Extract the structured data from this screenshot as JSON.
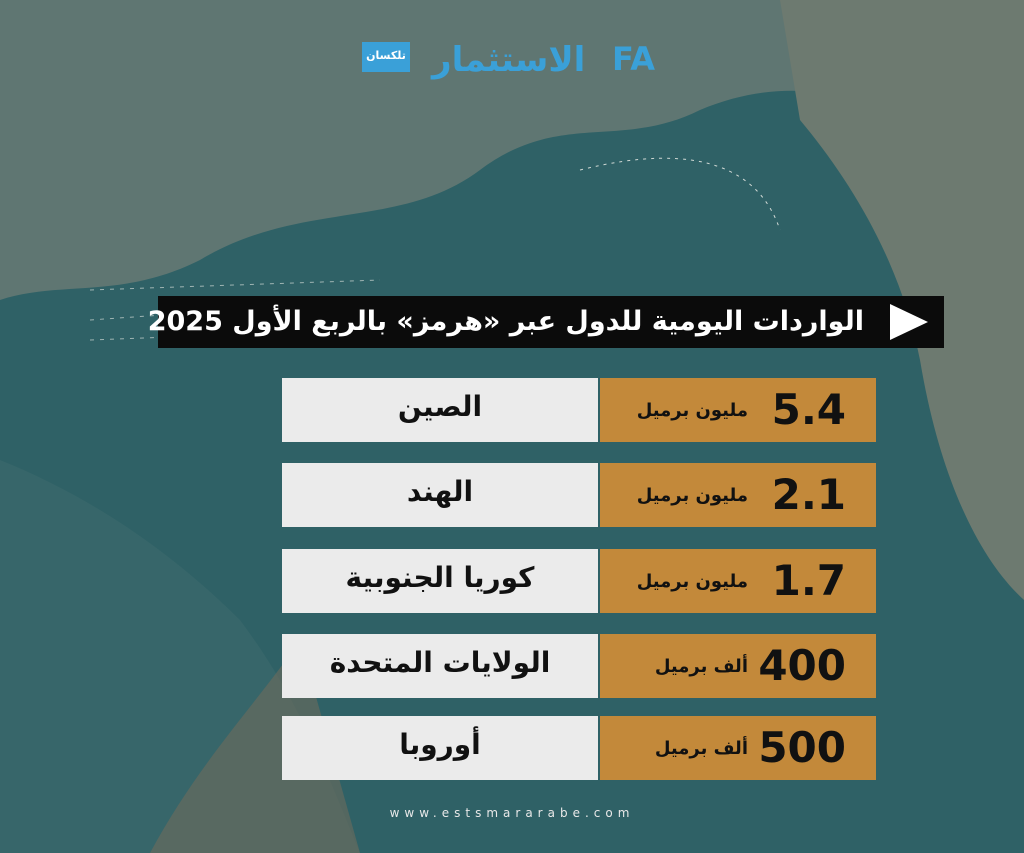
{
  "header": {
    "logos": [
      "تلكسان",
      "الاستثمار",
      "FA"
    ],
    "title": "الواردات اليومية للدول عبر «هرمز» بالربع الأول 2025"
  },
  "table": {
    "rows": [
      {
        "country": "الصين",
        "value": 5.4,
        "unit": "مليون برميل"
      },
      {
        "country": "الهند",
        "value": 2.1,
        "unit": "مليون برميل"
      },
      {
        "country": "كوريا الجنوبية",
        "value": 1.7,
        "unit": "مليون برميل"
      },
      {
        "country": "الولايات المتحدة",
        "value": 400,
        "unit": "ألف برميل"
      },
      {
        "country": "أوروبا",
        "value": 500,
        "unit": "ألف برميل"
      }
    ]
  },
  "footer": {
    "url": "www.estsmararabe.com"
  }
}
